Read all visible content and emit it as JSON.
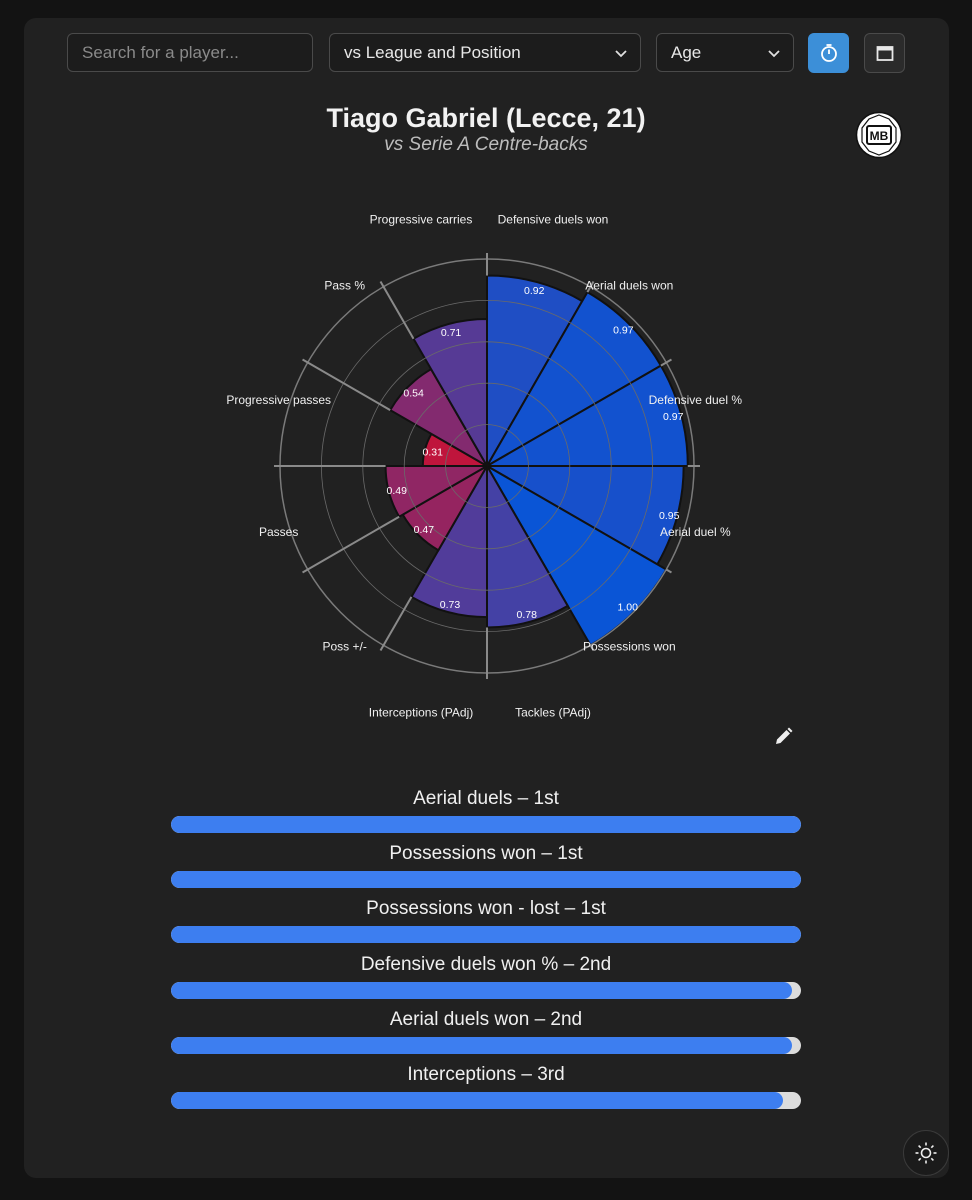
{
  "search": {
    "placeholder": "Search for a player..."
  },
  "filters": {
    "comparison": "vs League and Position",
    "age": "Age"
  },
  "buttons": {
    "timer_icon": "stopwatch-icon",
    "calendar_icon": "calendar-icon",
    "edit_icon": "pencil-icon",
    "theme_icon": "sun-icon"
  },
  "logo": {
    "text": "MB"
  },
  "colors": {
    "accent": "#3c8fd8",
    "bar_fill": "#3d7ef0",
    "bar_track": "#dcdcdc",
    "low": "#c2143a",
    "high": "#0a55d6"
  },
  "chart_data": {
    "type": "polar-bar",
    "title": "Tiago Gabriel (Lecce, 21)",
    "subtitle": "vs Serie A Centre-backs",
    "rlim": [
      0,
      1
    ],
    "grid": true,
    "categories": [
      "Defensive duels won",
      "Aerial duels won",
      "Defensive duel %",
      "Aerial duel %",
      "Possessions won",
      "Tackles (PAdj)",
      "Interceptions (PAdj)",
      "Poss +/-",
      "Passes",
      "Progressive passes",
      "Pass %",
      "Progressive carries"
    ],
    "values": [
      0.92,
      0.97,
      0.97,
      0.95,
      1.0,
      0.78,
      0.73,
      0.47,
      0.49,
      0.31,
      0.54,
      0.71
    ],
    "value_labels": [
      "0.92",
      "0.97",
      "0.97",
      "0.95",
      "1.00",
      "0.78",
      "0.73",
      "0.47",
      "0.49",
      "0.31",
      "0.54",
      "0.71"
    ]
  },
  "rankings": [
    {
      "label": "Aerial duels – 1st",
      "fill": 1.0
    },
    {
      "label": "Possessions won – 1st",
      "fill": 1.0
    },
    {
      "label": "Possessions won - lost – 1st",
      "fill": 1.0
    },
    {
      "label": "Defensive duels won % – 2nd",
      "fill": 0.985
    },
    {
      "label": "Aerial duels won – 2nd",
      "fill": 0.985
    },
    {
      "label": "Interceptions – 3rd",
      "fill": 0.972
    }
  ]
}
